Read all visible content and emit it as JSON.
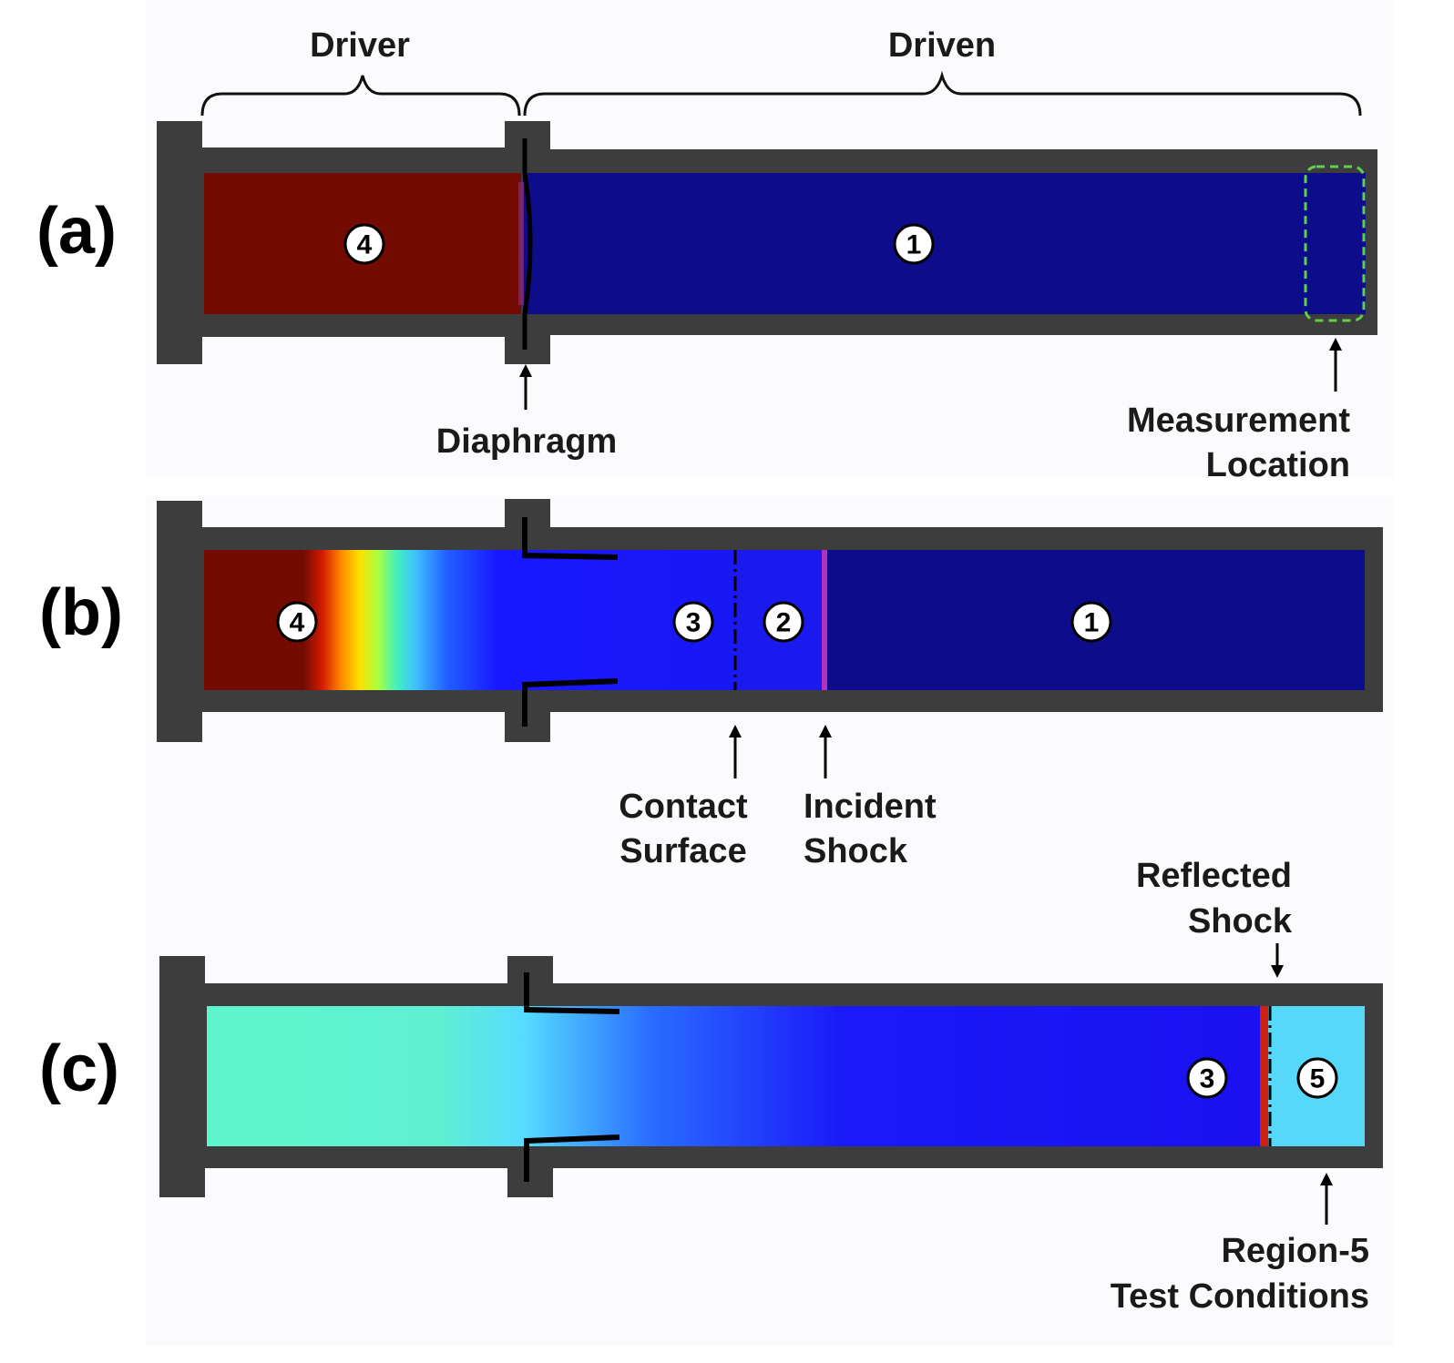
{
  "panels": {
    "a": {
      "label": "(a)",
      "brace_driver": "Driver",
      "brace_driven": "Driven",
      "regions": [
        "4",
        "1"
      ],
      "annotation_diaphragm": "Diaphragm",
      "annotation_measurement": [
        "Measurement",
        "Location"
      ]
    },
    "b": {
      "label": "(b)",
      "regions": [
        "4",
        "3",
        "2",
        "1"
      ],
      "annotation_contact": [
        "Contact",
        "Surface"
      ],
      "annotation_incident": [
        "Incident",
        "Shock"
      ]
    },
    "c": {
      "label": "(c)",
      "regions": [
        "3",
        "5"
      ],
      "annotation_reflected": [
        "Reflected",
        "Shock"
      ],
      "annotation_region5": [
        "Region-5",
        "Test Conditions"
      ]
    }
  },
  "colors": {
    "wall": "#3d3d3d",
    "driver_gas": "#730b03",
    "driven_gas": "#0d0d8c",
    "measurement_box": "#5fd04a",
    "incident_shock": "#b030c0",
    "reflected_shock": "#d02010"
  }
}
